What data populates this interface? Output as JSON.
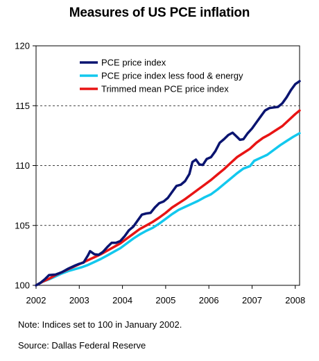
{
  "chart_data": {
    "type": "line",
    "title": "Measures of US PCE inflation",
    "xlabel": "",
    "ylabel": "",
    "xlim": [
      2002,
      2008.1
    ],
    "ylim": [
      100,
      120
    ],
    "x_ticks": [
      "2002",
      "2003",
      "2004",
      "2005",
      "2006",
      "2007",
      "2008"
    ],
    "y_ticks": [
      "100",
      "105",
      "110",
      "115",
      "120"
    ],
    "grid": "dashed horizontal at 105, 110, 115",
    "legend": "top-left inside plot",
    "series": [
      {
        "name": "PCE price index",
        "color": "#0a1470",
        "points": [
          [
            2002.0,
            100.0
          ],
          [
            2002.1,
            100.2
          ],
          [
            2002.2,
            100.5
          ],
          [
            2002.3,
            100.85
          ],
          [
            2002.45,
            100.9
          ],
          [
            2002.6,
            101.1
          ],
          [
            2002.75,
            101.4
          ],
          [
            2002.9,
            101.65
          ],
          [
            2003.0,
            101.8
          ],
          [
            2003.1,
            101.9
          ],
          [
            2003.2,
            102.5
          ],
          [
            2003.25,
            102.85
          ],
          [
            2003.35,
            102.6
          ],
          [
            2003.45,
            102.55
          ],
          [
            2003.55,
            102.8
          ],
          [
            2003.65,
            103.2
          ],
          [
            2003.75,
            103.55
          ],
          [
            2003.85,
            103.55
          ],
          [
            2003.95,
            103.7
          ],
          [
            2004.05,
            104.1
          ],
          [
            2004.15,
            104.6
          ],
          [
            2004.25,
            104.9
          ],
          [
            2004.35,
            105.4
          ],
          [
            2004.45,
            105.9
          ],
          [
            2004.55,
            106.0
          ],
          [
            2004.65,
            106.05
          ],
          [
            2004.75,
            106.5
          ],
          [
            2004.85,
            106.85
          ],
          [
            2004.95,
            107.0
          ],
          [
            2005.05,
            107.3
          ],
          [
            2005.15,
            107.8
          ],
          [
            2005.25,
            108.3
          ],
          [
            2005.35,
            108.4
          ],
          [
            2005.45,
            108.7
          ],
          [
            2005.55,
            109.3
          ],
          [
            2005.62,
            110.3
          ],
          [
            2005.7,
            110.5
          ],
          [
            2005.78,
            110.1
          ],
          [
            2005.86,
            110.05
          ],
          [
            2005.95,
            110.55
          ],
          [
            2006.05,
            110.7
          ],
          [
            2006.15,
            111.2
          ],
          [
            2006.25,
            111.9
          ],
          [
            2006.35,
            112.2
          ],
          [
            2006.45,
            112.55
          ],
          [
            2006.55,
            112.75
          ],
          [
            2006.65,
            112.4
          ],
          [
            2006.72,
            112.15
          ],
          [
            2006.8,
            112.2
          ],
          [
            2006.9,
            112.7
          ],
          [
            2007.0,
            113.1
          ],
          [
            2007.1,
            113.6
          ],
          [
            2007.2,
            114.1
          ],
          [
            2007.3,
            114.6
          ],
          [
            2007.4,
            114.8
          ],
          [
            2007.5,
            114.85
          ],
          [
            2007.6,
            114.9
          ],
          [
            2007.7,
            115.2
          ],
          [
            2007.8,
            115.7
          ],
          [
            2007.9,
            116.3
          ],
          [
            2008.0,
            116.8
          ],
          [
            2008.1,
            117.05
          ]
        ]
      },
      {
        "name": "PCE price index less food & energy",
        "color": "#12c8ee",
        "points": [
          [
            2002.0,
            100.0
          ],
          [
            2002.15,
            100.3
          ],
          [
            2002.3,
            100.5
          ],
          [
            2002.45,
            100.75
          ],
          [
            2002.6,
            101.0
          ],
          [
            2002.75,
            101.2
          ],
          [
            2002.9,
            101.35
          ],
          [
            2003.05,
            101.5
          ],
          [
            2003.2,
            101.7
          ],
          [
            2003.35,
            101.95
          ],
          [
            2003.5,
            102.2
          ],
          [
            2003.65,
            102.5
          ],
          [
            2003.8,
            102.8
          ],
          [
            2003.95,
            103.1
          ],
          [
            2004.1,
            103.5
          ],
          [
            2004.25,
            103.9
          ],
          [
            2004.4,
            104.25
          ],
          [
            2004.55,
            104.55
          ],
          [
            2004.7,
            104.8
          ],
          [
            2004.85,
            105.15
          ],
          [
            2005.0,
            105.55
          ],
          [
            2005.15,
            105.95
          ],
          [
            2005.3,
            106.3
          ],
          [
            2005.45,
            106.55
          ],
          [
            2005.6,
            106.8
          ],
          [
            2005.75,
            107.05
          ],
          [
            2005.9,
            107.35
          ],
          [
            2006.05,
            107.6
          ],
          [
            2006.2,
            108.0
          ],
          [
            2006.35,
            108.45
          ],
          [
            2006.5,
            108.9
          ],
          [
            2006.65,
            109.35
          ],
          [
            2006.8,
            109.75
          ],
          [
            2006.95,
            109.95
          ],
          [
            2007.05,
            110.4
          ],
          [
            2007.2,
            110.65
          ],
          [
            2007.35,
            110.9
          ],
          [
            2007.5,
            111.3
          ],
          [
            2007.65,
            111.7
          ],
          [
            2007.8,
            112.05
          ],
          [
            2007.95,
            112.4
          ],
          [
            2008.1,
            112.7
          ]
        ]
      },
      {
        "name": "Trimmed mean PCE price index",
        "color": "#e81414",
        "points": [
          [
            2002.0,
            100.0
          ],
          [
            2002.15,
            100.3
          ],
          [
            2002.3,
            100.55
          ],
          [
            2002.45,
            100.85
          ],
          [
            2002.6,
            101.1
          ],
          [
            2002.75,
            101.35
          ],
          [
            2002.9,
            101.6
          ],
          [
            2003.05,
            101.85
          ],
          [
            2003.2,
            102.1
          ],
          [
            2003.35,
            102.35
          ],
          [
            2003.5,
            102.6
          ],
          [
            2003.65,
            102.9
          ],
          [
            2003.8,
            103.2
          ],
          [
            2003.95,
            103.5
          ],
          [
            2004.1,
            103.9
          ],
          [
            2004.25,
            104.3
          ],
          [
            2004.4,
            104.7
          ],
          [
            2004.55,
            105.0
          ],
          [
            2004.7,
            105.3
          ],
          [
            2004.85,
            105.65
          ],
          [
            2005.0,
            106.05
          ],
          [
            2005.15,
            106.5
          ],
          [
            2005.3,
            106.85
          ],
          [
            2005.45,
            107.2
          ],
          [
            2005.6,
            107.6
          ],
          [
            2005.75,
            108.0
          ],
          [
            2005.9,
            108.4
          ],
          [
            2006.05,
            108.8
          ],
          [
            2006.2,
            109.25
          ],
          [
            2006.35,
            109.7
          ],
          [
            2006.5,
            110.2
          ],
          [
            2006.65,
            110.7
          ],
          [
            2006.8,
            111.05
          ],
          [
            2006.95,
            111.4
          ],
          [
            2007.1,
            111.9
          ],
          [
            2007.25,
            112.3
          ],
          [
            2007.4,
            112.6
          ],
          [
            2007.55,
            112.95
          ],
          [
            2007.7,
            113.3
          ],
          [
            2007.85,
            113.8
          ],
          [
            2008.0,
            114.3
          ],
          [
            2008.1,
            114.6
          ]
        ]
      }
    ]
  },
  "notes": {
    "note": "Note: Indices set to 100 in January 2002.",
    "source": "Source: Dallas Federal Reserve"
  }
}
